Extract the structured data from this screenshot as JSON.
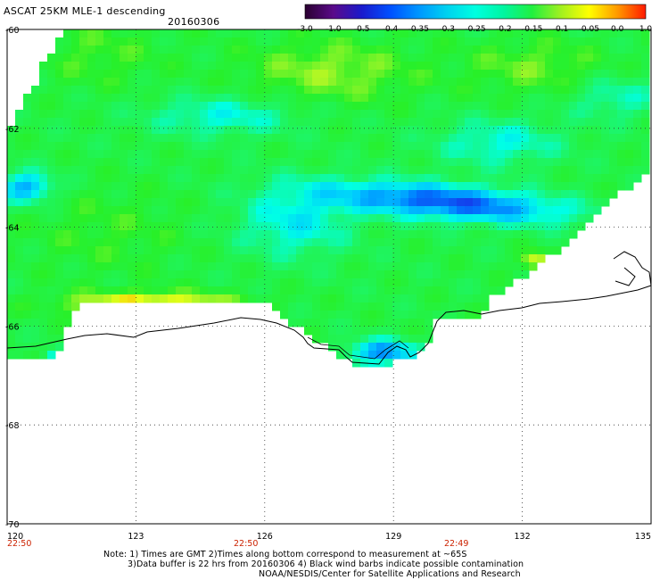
{
  "header": {
    "title": "ASCAT 25KM MLE-1 descending",
    "date": "20160306"
  },
  "colorbar": {
    "labels": [
      "-3.0",
      "-1.0",
      "-0.5",
      "-0.4",
      "-0.35",
      "-0.3",
      "-0.25",
      "-0.2",
      "-0.15",
      "-0.1",
      "-0.05",
      "0.0",
      "1.0"
    ],
    "colors": [
      "#2a0030",
      "#5a0a8a",
      "#1a1acc",
      "#0050ff",
      "#0096ff",
      "#00d2f0",
      "#00ffe0",
      "#00f5a0",
      "#20f040",
      "#a0f020",
      "#ffff00",
      "#ff9900",
      "#ff1a00"
    ]
  },
  "axes": {
    "lon_ticks": [
      "120",
      "123",
      "126",
      "129",
      "132",
      "135"
    ],
    "lat_ticks": [
      "-60",
      "-62",
      "-64",
      "-66",
      "-68",
      "-70"
    ]
  },
  "times": [
    "22:50",
    "22:50",
    "22:49"
  ],
  "notes": {
    "line1": "Note: 1) Times are GMT 2)Times along bottom correspond to measurement at ~65S",
    "line2": "3)Data buffer is 22 hrs from 20160306 4) Black wind barbs indicate possible contamination",
    "line3": "NOAA/NESDIS/Center for Satellite Applications and Research"
  }
}
